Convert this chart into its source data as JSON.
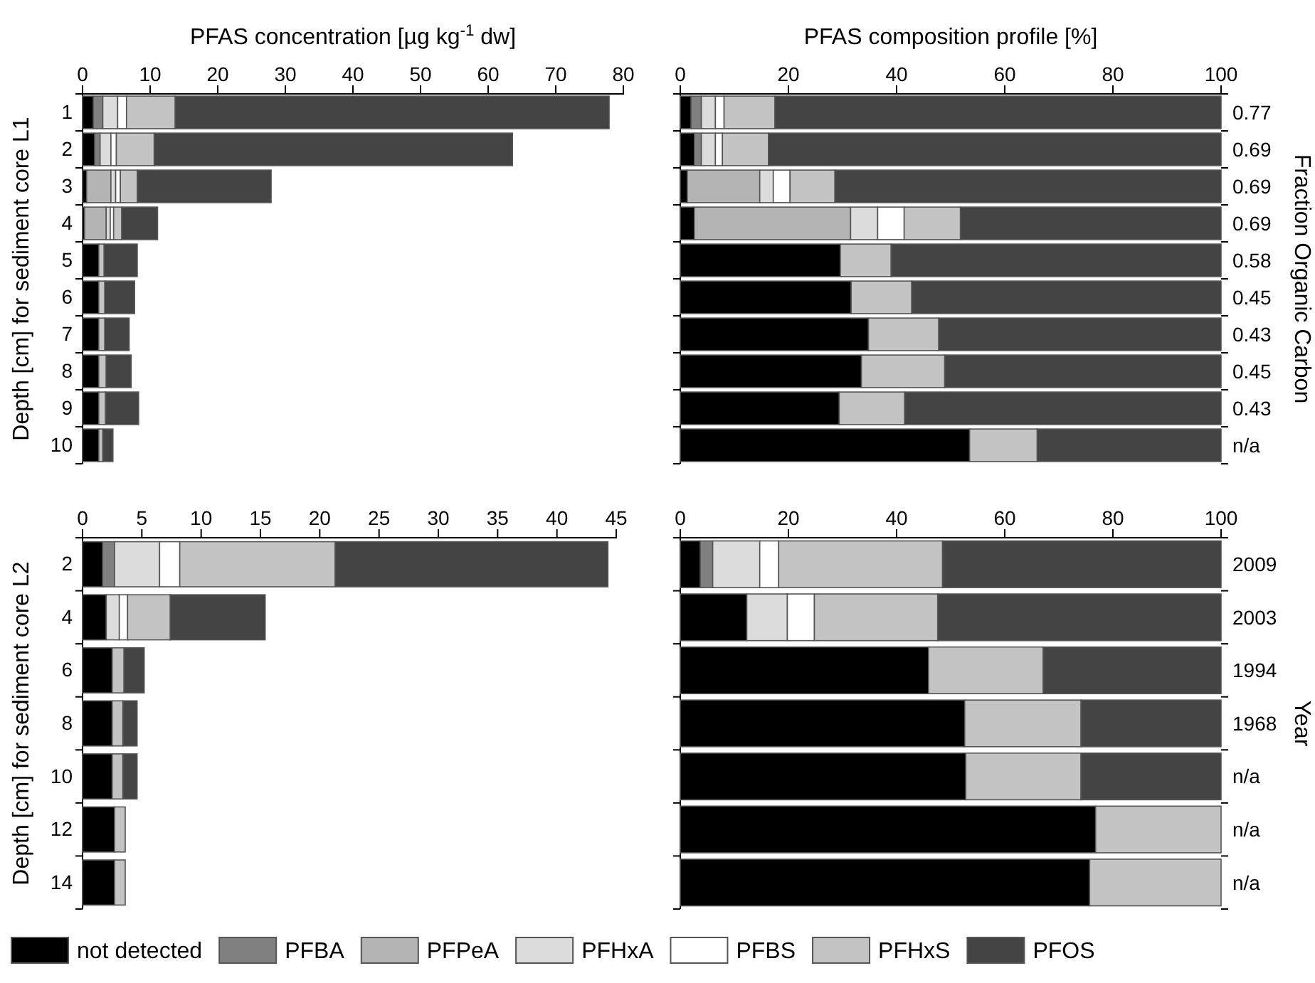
{
  "chart_data": [
    {
      "type": "bar",
      "orientation": "horizontal",
      "stacked": true,
      "xlabel": "PFAS concentration [µg kg$^{-1}$ dw]",
      "ylabel": "Depth [cm] for sediment core L1",
      "categories": [
        "1",
        "2",
        "3",
        "4",
        "5",
        "6",
        "7",
        "8",
        "9",
        "10"
      ],
      "xlim": [
        0,
        80
      ],
      "xticks": [
        0,
        10,
        20,
        30,
        40,
        50,
        60,
        70,
        80
      ],
      "series": [
        {
          "color": "#000000",
          "values": [
            1.6,
            1.8,
            0.6,
            0.3,
            2.4,
            2.4,
            2.4,
            2.4,
            2.4,
            2.4
          ]
        },
        {
          "color": "#808080",
          "values": [
            1.4,
            0.8,
            0,
            0,
            0,
            0,
            0,
            0,
            0,
            0
          ]
        },
        {
          "color": "#b4b4b4",
          "values": [
            0,
            0,
            3.6,
            3.2,
            0,
            0,
            0,
            0,
            0,
            0
          ]
        },
        {
          "color": "#dcdcdc",
          "values": [
            2.2,
            1.6,
            0.7,
            0.6,
            0,
            0,
            0,
            0,
            0,
            0
          ]
        },
        {
          "color": "#ffffff",
          "values": [
            1.3,
            0.8,
            0.7,
            0.5,
            0,
            0,
            0,
            0,
            0,
            0
          ]
        },
        {
          "color": "#c4c4c4",
          "values": [
            7.2,
            5.6,
            2.5,
            1.2,
            0.8,
            0.9,
            0.9,
            1.1,
            1.0,
            0.6
          ]
        },
        {
          "color": "#444444",
          "values": [
            64.2,
            53.0,
            19.8,
            5.3,
            4.9,
            4.4,
            3.6,
            3.7,
            4.9,
            1.5
          ]
        }
      ]
    },
    {
      "type": "bar",
      "orientation": "horizontal",
      "stacked": true,
      "xlabel": "PFAS composition profile [%]",
      "y2label": "Fraction Organic Carbon",
      "tick_labels": "x",
      "categories": [
        "1",
        "2",
        "3",
        "4",
        "5",
        "6",
        "7",
        "8",
        "9",
        "10"
      ],
      "xlim": [
        0,
        100
      ],
      "xticks": [
        0,
        20,
        40,
        60,
        80,
        100
      ],
      "annotations": [
        "0.77",
        "0.69",
        "0.69",
        "0.69",
        "0.58",
        "0.45",
        "0.43",
        "0.45",
        "0.43",
        "n/a"
      ],
      "series": [
        {
          "color": "#000000",
          "values": [
            2.0,
            2.6,
            1.3,
            2.6,
            29.6,
            31.6,
            34.8,
            33.5,
            29.4,
            53.5
          ]
        },
        {
          "color": "#808080",
          "values": [
            1.9,
            1.3,
            0,
            0,
            0,
            0,
            0,
            0,
            0,
            0
          ]
        },
        {
          "color": "#b4b4b4",
          "values": [
            0,
            0,
            13.4,
            28.9,
            0,
            0,
            0,
            0,
            0,
            0
          ]
        },
        {
          "color": "#dcdcdc",
          "values": [
            2.6,
            2.6,
            2.5,
            5.0,
            0,
            0,
            0,
            0,
            0,
            0
          ]
        },
        {
          "color": "#ffffff",
          "values": [
            1.6,
            1.3,
            3.1,
            4.9,
            0,
            0,
            0,
            0,
            0,
            0
          ]
        },
        {
          "color": "#c4c4c4",
          "values": [
            9.4,
            8.5,
            8.3,
            10.4,
            9.4,
            11.2,
            13.0,
            15.4,
            12.1,
            12.5
          ]
        },
        {
          "color": "#444444",
          "values": [
            82.5,
            83.7,
            71.4,
            48.2,
            61.0,
            57.2,
            52.2,
            51.1,
            58.5,
            34.0
          ]
        }
      ]
    },
    {
      "type": "bar",
      "orientation": "horizontal",
      "stacked": true,
      "ylabel": "Depth [cm] for sediment core L2",
      "legend": "bottom",
      "categories": [
        "2",
        "4",
        "6",
        "8",
        "10",
        "12",
        "14"
      ],
      "xlim": [
        0,
        45
      ],
      "xticks": [
        0,
        5,
        10,
        15,
        20,
        25,
        30,
        35,
        40,
        45
      ],
      "series": [
        {
          "name": "not detected",
          "color": "#000000",
          "values": [
            1.7,
            2.0,
            2.5,
            2.5,
            2.5,
            2.7,
            2.7
          ]
        },
        {
          "name": "PFBA",
          "color": "#808080",
          "values": [
            1.0,
            0,
            0,
            0,
            0,
            0,
            0
          ]
        },
        {
          "name": "PFPeA",
          "color": "#b4b4b4",
          "values": [
            0,
            0,
            0,
            0,
            0,
            0,
            0
          ]
        },
        {
          "name": "PFHxA",
          "color": "#dcdcdc",
          "values": [
            3.8,
            1.1,
            0,
            0,
            0,
            0,
            0
          ]
        },
        {
          "name": "PFBS",
          "color": "#ffffff",
          "values": [
            1.7,
            0.7,
            0,
            0,
            0,
            0,
            0
          ]
        },
        {
          "name": "PFHxS",
          "color": "#c4c4c4",
          "values": [
            13.1,
            3.6,
            1.0,
            0.9,
            0.9,
            0.9,
            0.9
          ]
        },
        {
          "name": "PFOS",
          "color": "#444444",
          "values": [
            23.0,
            8.0,
            1.7,
            1.2,
            1.2,
            0,
            0
          ]
        }
      ]
    },
    {
      "type": "bar",
      "orientation": "horizontal",
      "stacked": true,
      "y2label": "Year",
      "tick_labels": "x",
      "categories": [
        "2",
        "4",
        "6",
        "8",
        "10",
        "12",
        "14"
      ],
      "xlim": [
        0,
        100
      ],
      "xticks": [
        0,
        20,
        40,
        60,
        80,
        100
      ],
      "annotations": [
        "2009",
        "2003",
        "1994",
        "1968",
        "n/a",
        "n/a",
        "n/a"
      ],
      "series": [
        {
          "color": "#000000",
          "values": [
            3.7,
            12.3,
            45.9,
            52.6,
            52.8,
            76.8,
            75.7
          ]
        },
        {
          "color": "#808080",
          "values": [
            2.3,
            0,
            0,
            0,
            0,
            0,
            0
          ]
        },
        {
          "color": "#b4b4b4",
          "values": [
            0,
            0,
            0,
            0,
            0,
            0,
            0
          ]
        },
        {
          "color": "#dcdcdc",
          "values": [
            8.7,
            7.5,
            0,
            0,
            0,
            0,
            0
          ]
        },
        {
          "color": "#ffffff",
          "values": [
            3.5,
            5.0,
            0,
            0,
            0,
            0,
            0
          ]
        },
        {
          "color": "#c4c4c4",
          "values": [
            30.3,
            22.8,
            21.2,
            21.5,
            21.3,
            23.2,
            24.3
          ]
        },
        {
          "color": "#444444",
          "values": [
            51.5,
            52.4,
            32.9,
            25.9,
            25.9,
            0,
            0
          ]
        }
      ]
    }
  ]
}
